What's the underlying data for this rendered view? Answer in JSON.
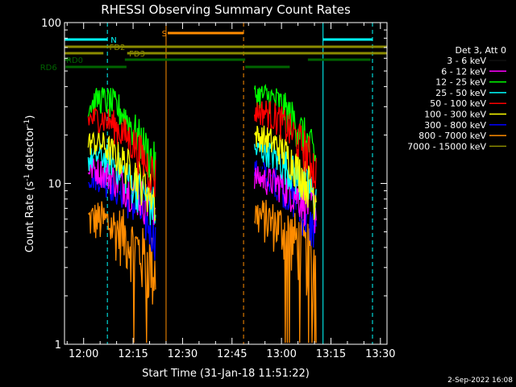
{
  "chart_data": {
    "type": "line",
    "title": "RHESSI Observing Summary Count Rates",
    "xlabel": "Start Time (31-Jan-18 11:51:22)",
    "ylabel_main": "Count Rate (s",
    "ylabel_sup1": "-1",
    "ylabel_mid": " detector",
    "ylabel_sup2": "-1",
    "ylabel_end": ")",
    "y_scale": "log",
    "ylim": [
      1,
      100
    ],
    "xlim_minutes": [
      -5.8,
      92
    ],
    "x_ticks": [
      {
        "label": "12:00",
        "minute": 0
      },
      {
        "label": "12:15",
        "minute": 15
      },
      {
        "label": "12:30",
        "minute": 30
      },
      {
        "label": "12:45",
        "minute": 45
      },
      {
        "label": "13:00",
        "minute": 60
      },
      {
        "label": "13:15",
        "minute": 75
      },
      {
        "label": "13:30",
        "minute": 90
      }
    ],
    "y_ticks": [
      {
        "label": "1",
        "value": 1
      },
      {
        "label": "10",
        "value": 10
      },
      {
        "label": "100",
        "value": 100
      }
    ],
    "legend_header": "Det 3, Att 0",
    "legend_position": "right",
    "series": [
      {
        "name": "3 - 6 keV",
        "color": "#000000",
        "seg1": [
          13.5,
          13.0,
          12.0,
          10.5,
          9.5,
          8.5,
          7.5
        ],
        "seg2": [
          12.0,
          11.5,
          10.5,
          9.5,
          8.5,
          7.5
        ]
      },
      {
        "name": "6 - 12 keV",
        "color": "#ff00ff",
        "seg1": [
          12.5,
          12.0,
          11.0,
          10.0,
          9.0,
          8.0,
          7.2
        ],
        "seg2": [
          11.0,
          10.5,
          10.0,
          9.0,
          8.0,
          7.0
        ]
      },
      {
        "name": "12 - 25 keV",
        "color": "#00ff00",
        "seg1": [
          30,
          34,
          32,
          28,
          22,
          17,
          13
        ],
        "seg2": [
          36,
          35,
          32,
          26,
          20,
          14
        ]
      },
      {
        "name": "25 - 50 keV",
        "color": "#00ffff",
        "seg1": [
          14,
          15,
          14,
          12,
          10,
          8.5,
          7
        ],
        "seg2": [
          16,
          16,
          14,
          12,
          10,
          8
        ]
      },
      {
        "name": "50 - 100 keV",
        "color": "#ff0000",
        "seg1": [
          25,
          26,
          24,
          21,
          18,
          14,
          11
        ],
        "seg2": [
          28,
          28,
          25,
          21,
          17,
          12
        ]
      },
      {
        "name": "100 - 300 keV",
        "color": "#ffff00",
        "seg1": [
          18,
          18,
          16,
          14,
          12,
          10,
          8
        ],
        "seg2": [
          20,
          19,
          17,
          14,
          11,
          8.5
        ]
      },
      {
        "name": "300 - 800 keV",
        "color": "#0000ff",
        "seg1": [
          11,
          11,
          10,
          9,
          7.5,
          6,
          5
        ],
        "seg2": [
          12,
          11.5,
          10,
          8.5,
          6.5,
          5
        ]
      },
      {
        "name": "800 - 7000 keV",
        "color": "#ff8c00",
        "seg1": [
          6,
          6,
          5.5,
          5,
          4.2,
          3.5,
          3
        ],
        "seg2": [
          6.5,
          6,
          5.5,
          4.8,
          4,
          3.2
        ]
      },
      {
        "name": "7000 - 15000 keV",
        "color": "#8b8b00",
        "seg1": [],
        "seg2": []
      }
    ],
    "seg1_range": [
      1.4,
      21.8
    ],
    "seg2_range": [
      51.8,
      70.5
    ],
    "flags": [
      {
        "name": "N",
        "color": "#00ffff",
        "y": 49,
        "segments": [
          [
            -5.8,
            7.2
          ],
          [
            72.5,
            87.6
          ]
        ],
        "label_minute": 8.2
      },
      {
        "name": "S",
        "color": "#ff8c00",
        "y": 41,
        "segments": [
          [
            25.5,
            48.5
          ]
        ],
        "label_minute": 23.7
      },
      {
        "name": "FD2",
        "color": "#8b8b00",
        "y": 58,
        "segments": [
          [
            -5.8,
            92
          ]
        ],
        "label_minute": 7.8
      },
      {
        "name": "FD3",
        "color": "#8b8b00",
        "y": 66,
        "segments": [
          [
            -5.8,
            6
          ],
          [
            13.2,
            92
          ]
        ],
        "label_minute": 13.8
      },
      {
        "name": "RD0",
        "color": "#006400",
        "y": 74,
        "segments": [
          [
            -5.8,
            -4
          ],
          [
            12.5,
            49
          ],
          [
            68,
            87
          ]
        ],
        "label_minute": -5.3
      },
      {
        "name": "RD6",
        "color": "#006400",
        "y": 83,
        "segments": [
          [
            -5.5,
            13
          ],
          [
            49,
            62.5
          ]
        ],
        "label_minute": -13.2
      }
    ],
    "vlines": [
      {
        "minute": -5.8,
        "color": "#00ffff",
        "style": "solid"
      },
      {
        "minute": 72.6,
        "color": "#00ffff",
        "style": "solid"
      },
      {
        "minute": 7.2,
        "color": "#00ffff",
        "style": "dashed"
      },
      {
        "minute": 87.6,
        "color": "#00ffff",
        "style": "dashed"
      },
      {
        "minute": 25.0,
        "color": "#ff8c00",
        "style": "solid"
      },
      {
        "minute": 48.5,
        "color": "#ff8c00",
        "style": "dashed"
      }
    ],
    "timestamp": "2-Sep-2022 16:08"
  }
}
